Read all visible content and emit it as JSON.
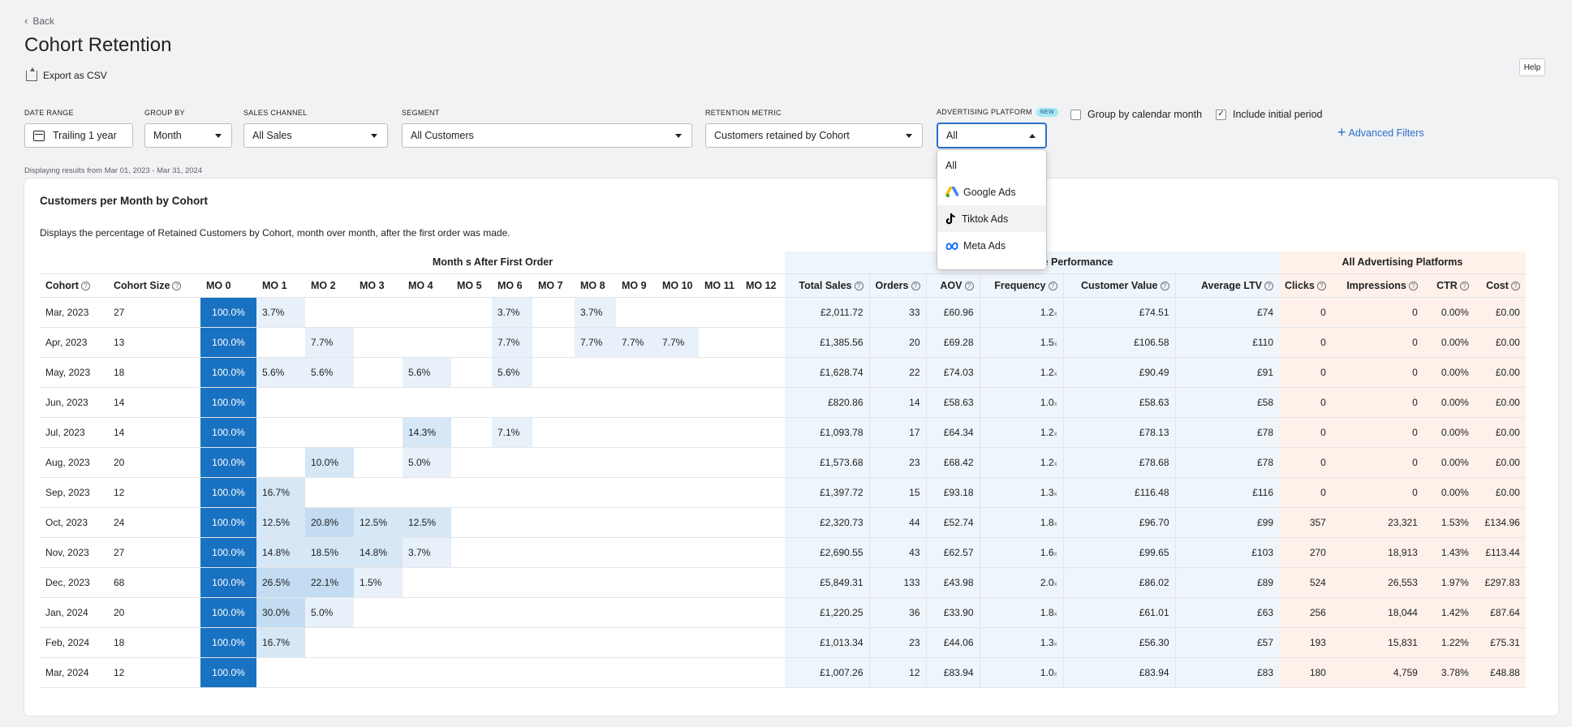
{
  "nav": {
    "back_label": "Back"
  },
  "header": {
    "title": "Cohort Retention",
    "export_label": "Export as CSV",
    "help_label": "Help"
  },
  "filters": {
    "date_range": {
      "label": "DATE RANGE",
      "value": "Trailing 1 year"
    },
    "group_by": {
      "label": "GROUP BY",
      "value": "Month"
    },
    "sales_channel": {
      "label": "SALES CHANNEL",
      "value": "All Sales"
    },
    "segment": {
      "label": "SEGMENT",
      "value": "All Customers"
    },
    "retention_metric": {
      "label": "RETENTION METRIC",
      "value": "Customers retained by Cohort"
    },
    "advertising_platform": {
      "label": "ADVERTISING PLATFORM",
      "badge": "NEW",
      "value": "All",
      "options": [
        "All",
        "Google Ads",
        "Tiktok Ads",
        "Meta Ads"
      ],
      "hovered_option": "Tiktok Ads"
    },
    "group_by_calendar": {
      "label": "Group by calendar month",
      "checked": false
    },
    "include_initial": {
      "label": "Include initial period",
      "checked": true
    },
    "advanced_label": "Advanced Filters"
  },
  "displaying_text": "Displaying results from Mar 01, 2023 - Mar 31, 2024",
  "card": {
    "title": "Customers per Month by Cohort",
    "description": "Displays the percentage of Retained Customers by Cohort, month over month, after the first order was made."
  },
  "table": {
    "group_months": "Month s After First Order",
    "group_sales_visible": "e Performance",
    "group_ads": "All Advertising Platforms",
    "headers": {
      "cohort": "Cohort",
      "cohort_size": "Cohort Size",
      "months": [
        "MO 0",
        "MO 1",
        "MO 2",
        "MO 3",
        "MO 4",
        "MO 5",
        "MO 6",
        "MO 7",
        "MO 8",
        "MO 9",
        "MO 10",
        "MO 11",
        "MO 12"
      ],
      "total_sales": "Total Sales",
      "orders": "Orders",
      "aov": "AOV",
      "frequency": "Frequency",
      "customer_value": "Customer Value",
      "avg_ltv": "Average LTV",
      "clicks": "Clicks",
      "impressions": "Impressions",
      "ctr": "CTR",
      "cost": "Cost"
    },
    "frequency_suffix": "x",
    "rows": [
      {
        "cohort": "Mar, 2023",
        "size": "27",
        "mo": [
          "100.0%",
          "3.7%",
          "",
          "",
          "",
          "",
          "3.7%",
          "",
          "3.7%",
          "",
          "",
          "",
          ""
        ],
        "total_sales": "£2,011.72",
        "orders": "33",
        "aov": "£60.96",
        "frequency": "1.2",
        "customer_value": "£74.51",
        "avg_ltv": "£74",
        "clicks": "0",
        "impressions": "0",
        "ctr": "0.00%",
        "cost": "£0.00"
      },
      {
        "cohort": "Apr, 2023",
        "size": "13",
        "mo": [
          "100.0%",
          "",
          "7.7%",
          "",
          "",
          "",
          "7.7%",
          "",
          "7.7%",
          "7.7%",
          "7.7%",
          "",
          ""
        ],
        "total_sales": "£1,385.56",
        "orders": "20",
        "aov": "£69.28",
        "frequency": "1.5",
        "customer_value": "£106.58",
        "avg_ltv": "£110",
        "clicks": "0",
        "impressions": "0",
        "ctr": "0.00%",
        "cost": "£0.00"
      },
      {
        "cohort": "May, 2023",
        "size": "18",
        "mo": [
          "100.0%",
          "5.6%",
          "5.6%",
          "",
          "5.6%",
          "",
          "5.6%",
          "",
          "",
          "",
          "",
          "",
          ""
        ],
        "total_sales": "£1,628.74",
        "orders": "22",
        "aov": "£74.03",
        "frequency": "1.2",
        "customer_value": "£90.49",
        "avg_ltv": "£91",
        "clicks": "0",
        "impressions": "0",
        "ctr": "0.00%",
        "cost": "£0.00"
      },
      {
        "cohort": "Jun, 2023",
        "size": "14",
        "mo": [
          "100.0%",
          "",
          "",
          "",
          "",
          "",
          "",
          "",
          "",
          "",
          "",
          "",
          ""
        ],
        "total_sales": "£820.86",
        "orders": "14",
        "aov": "£58.63",
        "frequency": "1.0",
        "customer_value": "£58.63",
        "avg_ltv": "£58",
        "clicks": "0",
        "impressions": "0",
        "ctr": "0.00%",
        "cost": "£0.00"
      },
      {
        "cohort": "Jul, 2023",
        "size": "14",
        "mo": [
          "100.0%",
          "",
          "",
          "",
          "14.3%",
          "",
          "7.1%",
          "",
          "",
          "",
          "",
          "",
          ""
        ],
        "total_sales": "£1,093.78",
        "orders": "17",
        "aov": "£64.34",
        "frequency": "1.2",
        "customer_value": "£78.13",
        "avg_ltv": "£78",
        "clicks": "0",
        "impressions": "0",
        "ctr": "0.00%",
        "cost": "£0.00"
      },
      {
        "cohort": "Aug, 2023",
        "size": "20",
        "mo": [
          "100.0%",
          "",
          "10.0%",
          "",
          "5.0%",
          "",
          "",
          "",
          "",
          "",
          "",
          "",
          ""
        ],
        "total_sales": "£1,573.68",
        "orders": "23",
        "aov": "£68.42",
        "frequency": "1.2",
        "customer_value": "£78.68",
        "avg_ltv": "£78",
        "clicks": "0",
        "impressions": "0",
        "ctr": "0.00%",
        "cost": "£0.00"
      },
      {
        "cohort": "Sep, 2023",
        "size": "12",
        "mo": [
          "100.0%",
          "16.7%",
          "",
          "",
          "",
          "",
          "",
          "",
          "",
          "",
          "",
          "",
          ""
        ],
        "total_sales": "£1,397.72",
        "orders": "15",
        "aov": "£93.18",
        "frequency": "1.3",
        "customer_value": "£116.48",
        "avg_ltv": "£116",
        "clicks": "0",
        "impressions": "0",
        "ctr": "0.00%",
        "cost": "£0.00"
      },
      {
        "cohort": "Oct, 2023",
        "size": "24",
        "mo": [
          "100.0%",
          "12.5%",
          "20.8%",
          "12.5%",
          "12.5%",
          "",
          "",
          "",
          "",
          "",
          "",
          "",
          ""
        ],
        "total_sales": "£2,320.73",
        "orders": "44",
        "aov": "£52.74",
        "frequency": "1.8",
        "customer_value": "£96.70",
        "avg_ltv": "£99",
        "clicks": "357",
        "impressions": "23,321",
        "ctr": "1.53%",
        "cost": "£134.96"
      },
      {
        "cohort": "Nov, 2023",
        "size": "27",
        "mo": [
          "100.0%",
          "14.8%",
          "18.5%",
          "14.8%",
          "3.7%",
          "",
          "",
          "",
          "",
          "",
          "",
          "",
          ""
        ],
        "total_sales": "£2,690.55",
        "orders": "43",
        "aov": "£62.57",
        "frequency": "1.6",
        "customer_value": "£99.65",
        "avg_ltv": "£103",
        "clicks": "270",
        "impressions": "18,913",
        "ctr": "1.43%",
        "cost": "£113.44"
      },
      {
        "cohort": "Dec, 2023",
        "size": "68",
        "mo": [
          "100.0%",
          "26.5%",
          "22.1%",
          "1.5%",
          "",
          "",
          "",
          "",
          "",
          "",
          "",
          "",
          ""
        ],
        "total_sales": "£5,849.31",
        "orders": "133",
        "aov": "£43.98",
        "frequency": "2.0",
        "customer_value": "£86.02",
        "avg_ltv": "£89",
        "clicks": "524",
        "impressions": "26,553",
        "ctr": "1.97%",
        "cost": "£297.83"
      },
      {
        "cohort": "Jan, 2024",
        "size": "20",
        "mo": [
          "100.0%",
          "30.0%",
          "5.0%",
          "",
          "",
          "",
          "",
          "",
          "",
          "",
          "",
          "",
          ""
        ],
        "total_sales": "£1,220.25",
        "orders": "36",
        "aov": "£33.90",
        "frequency": "1.8",
        "customer_value": "£61.01",
        "avg_ltv": "£63",
        "clicks": "256",
        "impressions": "18,044",
        "ctr": "1.42%",
        "cost": "£87.64"
      },
      {
        "cohort": "Feb, 2024",
        "size": "18",
        "mo": [
          "100.0%",
          "16.7%",
          "",
          "",
          "",
          "",
          "",
          "",
          "",
          "",
          "",
          "",
          ""
        ],
        "total_sales": "£1,013.34",
        "orders": "23",
        "aov": "£44.06",
        "frequency": "1.3",
        "customer_value": "£56.30",
        "avg_ltv": "£57",
        "clicks": "193",
        "impressions": "15,831",
        "ctr": "1.22%",
        "cost": "£75.31"
      },
      {
        "cohort": "Mar, 2024",
        "size": "12",
        "mo": [
          "100.0%",
          "",
          "",
          "",
          "",
          "",
          "",
          "",
          "",
          "",
          "",
          "",
          ""
        ],
        "total_sales": "£1,007.26",
        "orders": "12",
        "aov": "£83.94",
        "frequency": "1.0",
        "customer_value": "£83.94",
        "avg_ltv": "£83",
        "clicks": "180",
        "impressions": "4,759",
        "ctr": "3.78%",
        "cost": "£48.88"
      }
    ]
  },
  "colors": {
    "heat_full": "#1971c2",
    "heat_mid": "#c3dcf1",
    "heat_light": "#e8f1fa",
    "sales_bg": "#eef5fb",
    "ads_bg": "#fdf1ea",
    "link": "#2c6ecb"
  },
  "icons": {
    "back": "chevron-left-icon",
    "export": "export-icon",
    "date": "calendar-icon",
    "dropdown": "caret-down-icon",
    "help": "question-circle-icon",
    "plus": "plus-icon",
    "google": "google-ads-logo-icon",
    "tiktok": "tiktok-logo-icon",
    "meta": "meta-logo-icon"
  }
}
